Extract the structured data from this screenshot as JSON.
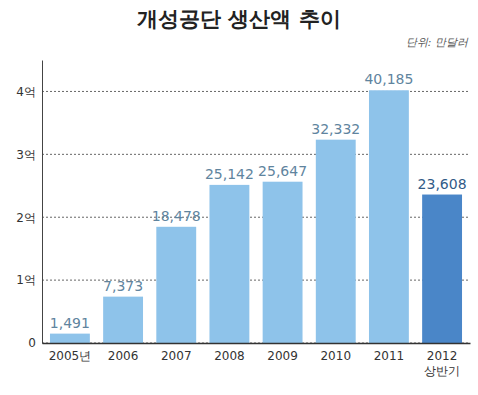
{
  "chart_data": {
    "type": "bar",
    "title": "개성공단 생산액 추이",
    "subtitle": "단위: 만달러",
    "categories": [
      "2005년",
      "2006",
      "2007",
      "2008",
      "2009",
      "2010",
      "2011",
      "2012 상반기"
    ],
    "values": [
      1491,
      7373,
      18478,
      25142,
      25647,
      32332,
      40185,
      23608
    ],
    "value_labels": [
      "1,491",
      "7,373",
      "18,478",
      "25,142",
      "25,647",
      "32,332",
      "40,185",
      "23,608"
    ],
    "colors": [
      "#8ec3ea",
      "#8ec3ea",
      "#8ec3ea",
      "#8ec3ea",
      "#8ec3ea",
      "#8ec3ea",
      "#8ec3ea",
      "#4a86c8"
    ],
    "ylim": [
      0,
      45000
    ],
    "yticks": [
      0,
      {
        "value": 10000,
        "label": "1억"
      },
      {
        "value": 20000,
        "label": "2억"
      },
      {
        "value": 30000,
        "label": "3억"
      },
      {
        "value": 40000,
        "label": "4억"
      }
    ],
    "grid": true,
    "data_labels": true
  }
}
